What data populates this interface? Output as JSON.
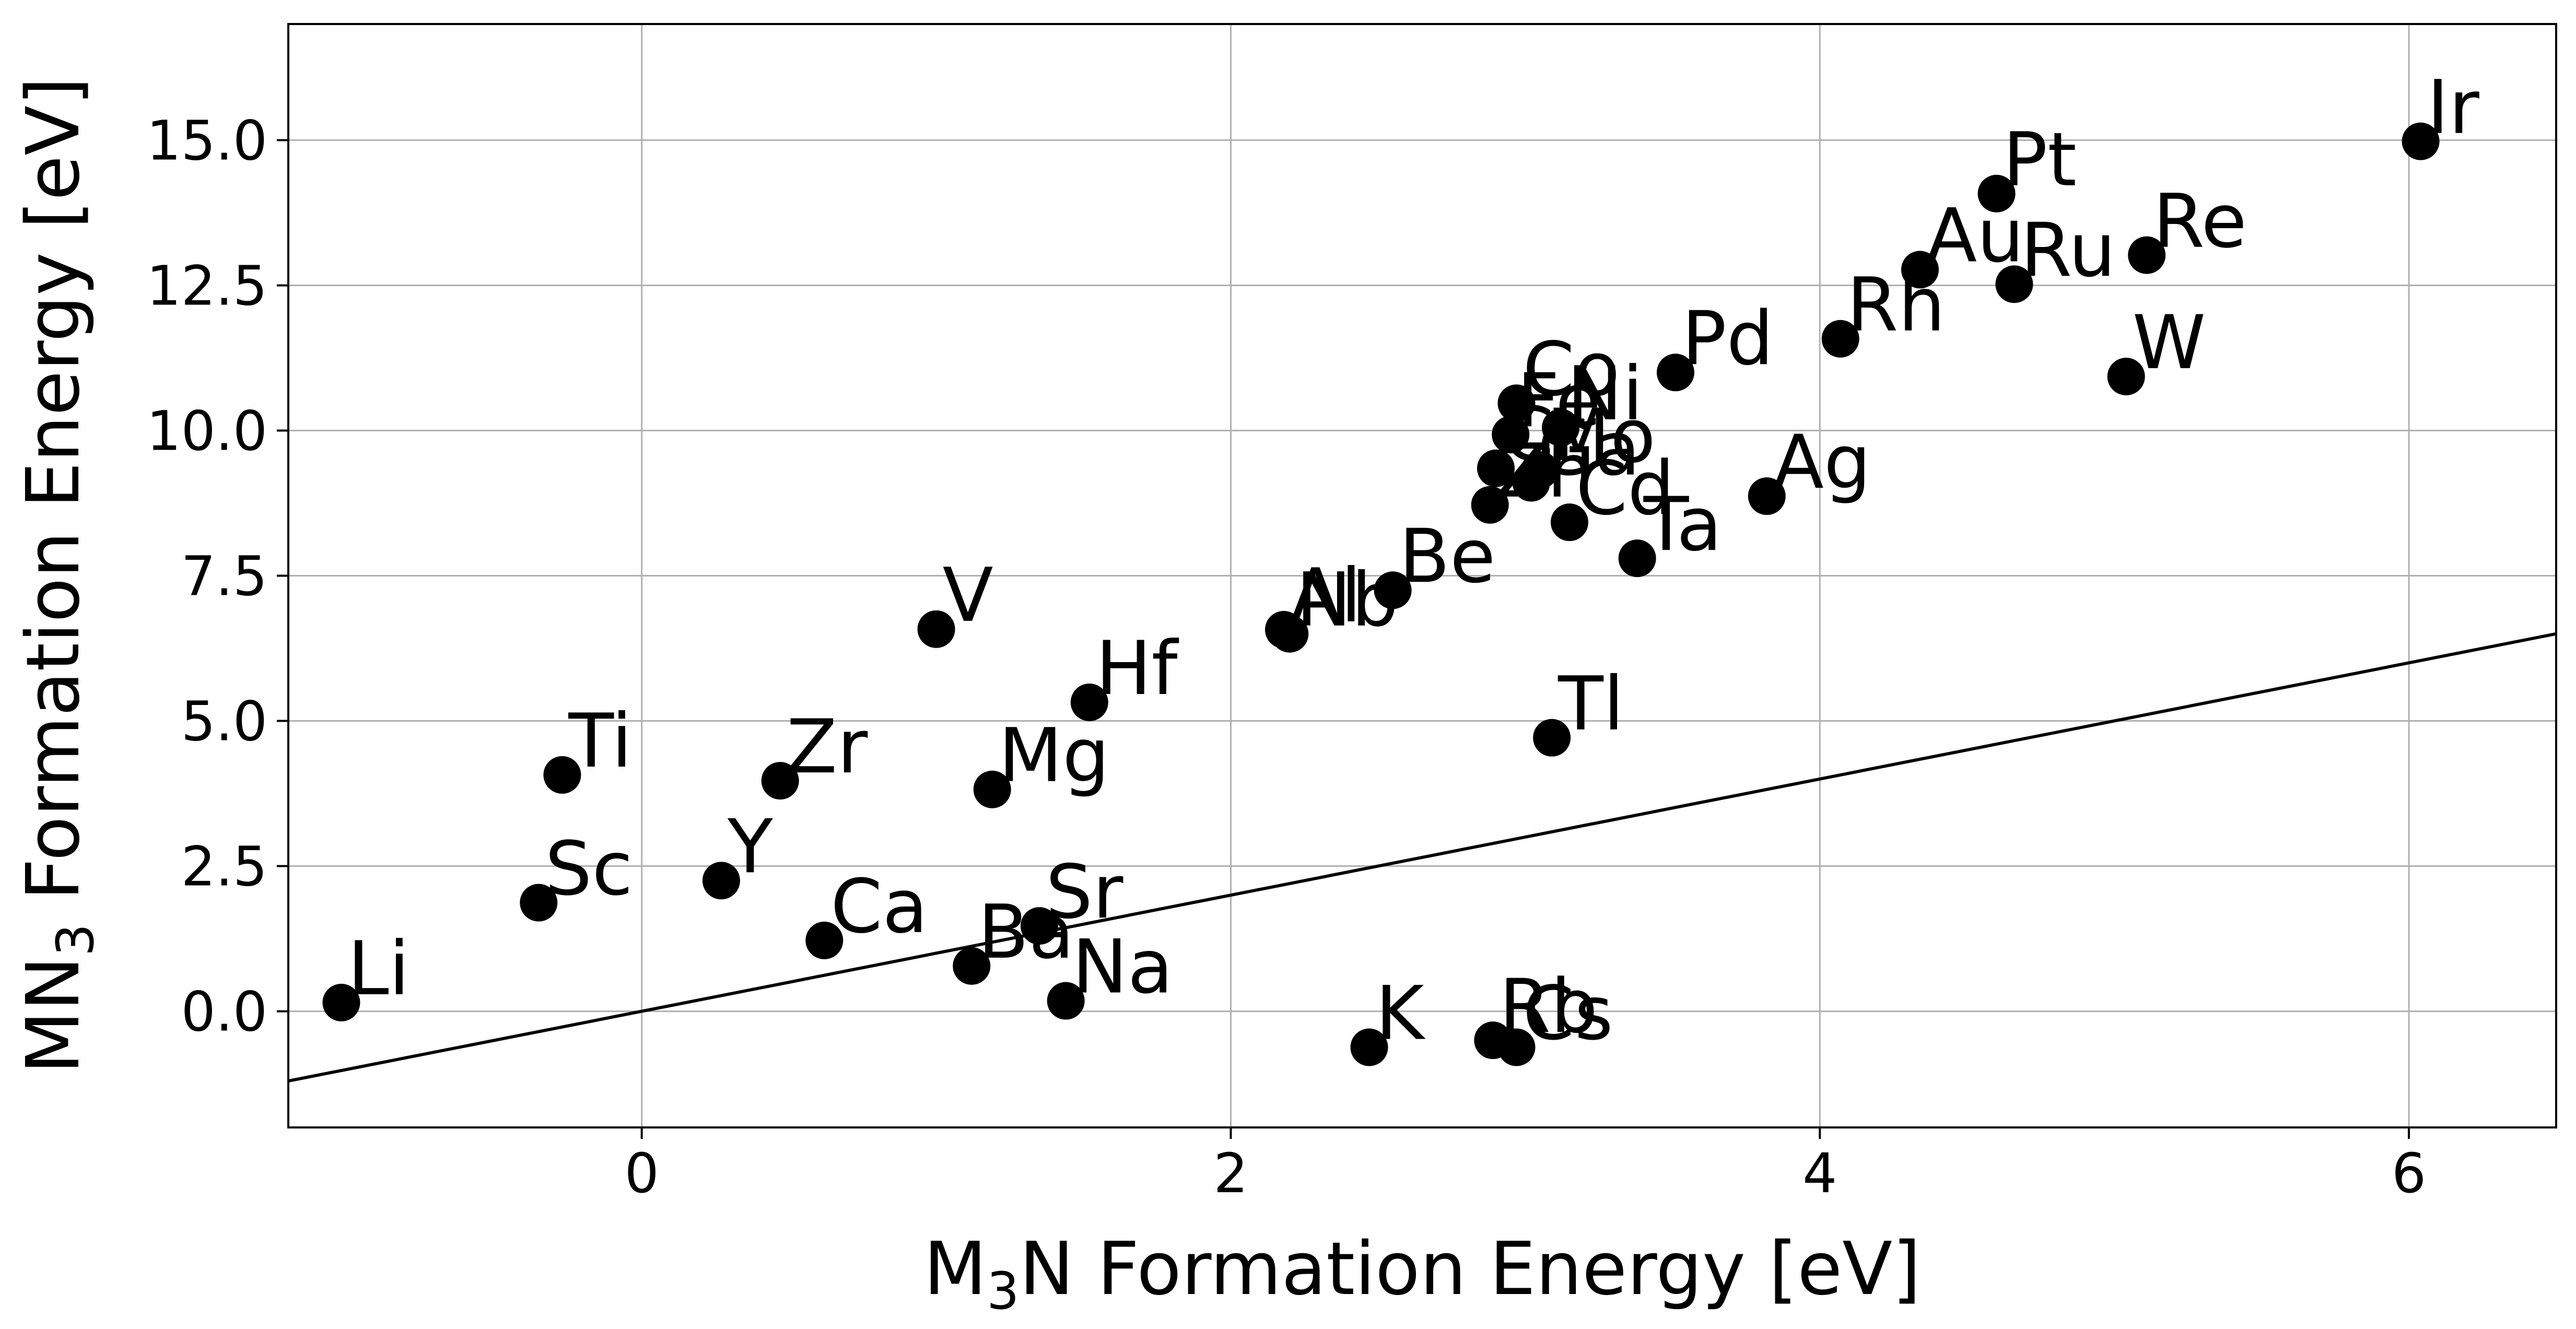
{
  "chart_data": {
    "type": "scatter",
    "xlabel": {
      "pre": "M",
      "sub": "3",
      "post": "N Formation Energy [eV]"
    },
    "ylabel": {
      "pre": "MN",
      "sub": "3",
      "post": " Formation Energy [eV]"
    },
    "xlim": [
      -1.2,
      6.5
    ],
    "ylim": [
      -2.0,
      17.0
    ],
    "xticks": [
      0,
      2,
      4,
      6
    ],
    "xtick_labels": [
      "0",
      "2",
      "4",
      "6"
    ],
    "yticks": [
      0.0,
      2.5,
      5.0,
      7.5,
      10.0,
      12.5,
      15.0
    ],
    "ytick_labels": [
      "0.0",
      "2.5",
      "5.0",
      "7.5",
      "10.0",
      "12.5",
      "15.0"
    ],
    "grid": true,
    "marker_color": "#000000",
    "reference_line": {
      "description": "y = x",
      "from": [
        -1.2,
        -1.2
      ],
      "to": [
        6.5,
        6.5
      ]
    },
    "points": [
      {
        "label": "Li",
        "x": -1.02,
        "y": 0.15
      },
      {
        "label": "Sc",
        "x": -0.35,
        "y": 1.87
      },
      {
        "label": "Ti",
        "x": -0.27,
        "y": 4.07
      },
      {
        "label": "Y",
        "x": 0.27,
        "y": 2.25
      },
      {
        "label": "Zr",
        "x": 0.47,
        "y": 3.97
      },
      {
        "label": "Ca",
        "x": 0.62,
        "y": 1.22
      },
      {
        "label": "V",
        "x": 1.0,
        "y": 6.58
      },
      {
        "label": "Ba",
        "x": 1.12,
        "y": 0.78
      },
      {
        "label": "Mg",
        "x": 1.19,
        "y": 3.82
      },
      {
        "label": "Sr",
        "x": 1.35,
        "y": 1.47
      },
      {
        "label": "Na",
        "x": 1.44,
        "y": 0.18
      },
      {
        "label": "Hf",
        "x": 1.52,
        "y": 5.32
      },
      {
        "label": "Al",
        "x": 2.18,
        "y": 6.57
      },
      {
        "label": "Nb",
        "x": 2.2,
        "y": 6.5
      },
      {
        "label": "K",
        "x": 2.47,
        "y": -0.62
      },
      {
        "label": "Be",
        "x": 2.55,
        "y": 7.25
      },
      {
        "label": "Rb",
        "x": 2.89,
        "y": -0.5
      },
      {
        "label": "Zn",
        "x": 2.88,
        "y": 8.72
      },
      {
        "label": "Cr",
        "x": 2.9,
        "y": 9.35
      },
      {
        "label": "Cs",
        "x": 2.97,
        "y": -0.62
      },
      {
        "label": "Co",
        "x": 2.97,
        "y": 10.47
      },
      {
        "label": "Fe",
        "x": 2.95,
        "y": 9.93
      },
      {
        "label": "Ga",
        "x": 3.02,
        "y": 9.1
      },
      {
        "label": "Mo",
        "x": 3.05,
        "y": 9.32
      },
      {
        "label": "Ni",
        "x": 3.12,
        "y": 10.05
      },
      {
        "label": "Tl",
        "x": 3.09,
        "y": 4.71
      },
      {
        "label": "Cd",
        "x": 3.15,
        "y": 8.42
      },
      {
        "label": "Ta",
        "x": 3.38,
        "y": 7.8
      },
      {
        "label": "Pd",
        "x": 3.51,
        "y": 11.0
      },
      {
        "label": "Ag",
        "x": 3.82,
        "y": 8.87
      },
      {
        "label": "Rh",
        "x": 4.07,
        "y": 11.58
      },
      {
        "label": "Au",
        "x": 4.34,
        "y": 12.77
      },
      {
        "label": "Pt",
        "x": 4.6,
        "y": 14.08
      },
      {
        "label": "Ru",
        "x": 4.66,
        "y": 12.52
      },
      {
        "label": "W",
        "x": 5.04,
        "y": 10.93
      },
      {
        "label": "Re",
        "x": 5.11,
        "y": 13.02
      },
      {
        "label": "Ir",
        "x": 6.04,
        "y": 14.98
      }
    ]
  }
}
